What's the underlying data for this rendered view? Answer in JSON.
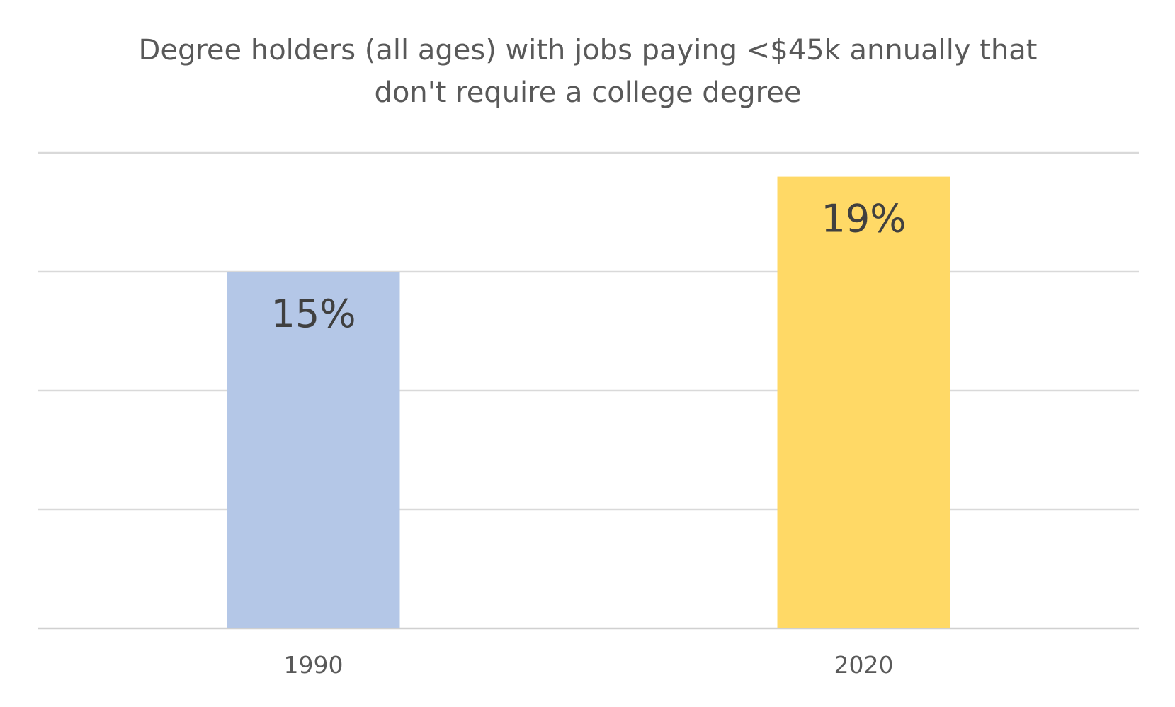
{
  "chart_data": {
    "type": "bar",
    "title": "Degree holders (all ages) with jobs paying <$45k annually that don't require a college degree",
    "title_lines": [
      "Degree holders (all ages) with jobs paying <$45k annually that",
      "don't require a college degree"
    ],
    "categories": [
      "1990",
      "2020"
    ],
    "values": [
      15,
      19
    ],
    "value_labels": [
      "15%",
      "19%"
    ],
    "colors": [
      "#b4c7e7",
      "#ffd966"
    ],
    "ylim": [
      0,
      20
    ],
    "ytick_step": 5,
    "grid": true,
    "legend": "none",
    "xlabel": "",
    "ylabel": ""
  }
}
